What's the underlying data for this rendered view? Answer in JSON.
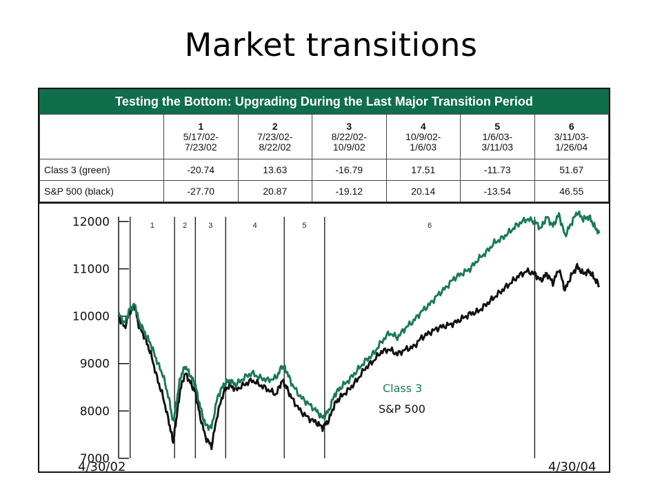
{
  "slide": {
    "title": "Market transitions"
  },
  "table": {
    "banner": "Testing the Bottom: Upgrading During the Last Major Transition Period",
    "periods": [
      {
        "num": "1",
        "start": "5/17/02-",
        "end": "7/23/02"
      },
      {
        "num": "2",
        "start": "7/23/02-",
        "end": "8/22/02"
      },
      {
        "num": "3",
        "start": "8/22/02-",
        "end": "10/9/02"
      },
      {
        "num": "4",
        "start": "10/9/02-",
        "end": "1/6/03"
      },
      {
        "num": "5",
        "start": "1/6/03-",
        "end": "3/11/03"
      },
      {
        "num": "6",
        "start": "3/11/03-",
        "end": "1/26/04"
      }
    ],
    "rows": [
      {
        "label": "Class 3 (green)",
        "values": [
          "-20.74",
          "13.63",
          "-16.79",
          "17.51",
          "-11.73",
          "51.67"
        ]
      },
      {
        "label": "S&P 500 (black)",
        "values": [
          "-27.70",
          "20.87",
          "-19.12",
          "20.14",
          "-13.54",
          "46.55"
        ]
      }
    ]
  },
  "colors": {
    "green": "#1a7a5a",
    "black": "#111111",
    "banner": "#0f6e4c"
  },
  "chart_data": {
    "type": "line",
    "yticks": [
      7000,
      8000,
      9000,
      10000,
      11000,
      12000
    ],
    "ytick_labels": [
      "7000",
      "8000",
      "9000",
      "10000",
      "11000",
      "12000"
    ],
    "ylim": [
      7000,
      12100
    ],
    "x_start_label": "4/30/02",
    "x_end_label": "4/30/04",
    "period_labels": [
      "1",
      "2",
      "3",
      "4",
      "5",
      "6"
    ],
    "boundary_months": [
      0.57,
      2.77,
      3.8,
      5.3,
      8.2,
      10.2,
      20.6
    ],
    "xlim_months": [
      0,
      24
    ],
    "annotations": [
      {
        "text": "Class 3",
        "color": "green"
      },
      {
        "text": "S&P 500",
        "color": "black"
      }
    ],
    "series": [
      {
        "color": "green",
        "x": [
          0,
          0.3,
          0.55,
          0.8,
          1.0,
          1.3,
          1.6,
          1.9,
          2.2,
          2.5,
          2.7,
          2.85,
          3.05,
          3.3,
          3.55,
          3.8,
          4.0,
          4.3,
          4.6,
          4.9,
          5.2,
          5.5,
          5.8,
          6.2,
          6.6,
          7.0,
          7.4,
          7.8,
          8.1,
          8.3,
          8.6,
          9.0,
          9.4,
          9.8,
          10.1,
          10.4,
          10.7,
          11.0,
          11.4,
          11.8,
          12.2,
          12.6,
          13.0,
          13.4,
          13.8,
          14.2,
          14.6,
          15.0,
          15.4,
          15.8,
          16.2,
          16.6,
          17.0,
          17.4,
          17.8,
          18.2,
          18.6,
          19.0,
          19.4,
          19.8,
          20.2,
          20.6,
          20.9,
          21.2,
          21.5,
          21.8,
          22.1,
          22.4,
          22.7,
          23.0,
          23.3,
          23.55,
          23.8
        ],
        "values": [
          10050,
          9850,
          10150,
          10250,
          9900,
          9650,
          9400,
          9050,
          8750,
          8250,
          7750,
          8150,
          8700,
          8950,
          8750,
          8550,
          8150,
          7700,
          7650,
          8300,
          8550,
          8650,
          8550,
          8700,
          8800,
          8700,
          8650,
          8700,
          8950,
          8850,
          8550,
          8300,
          8150,
          8000,
          7850,
          8000,
          8350,
          8500,
          8650,
          8850,
          9050,
          9200,
          9450,
          9650,
          9550,
          9750,
          9900,
          10100,
          10250,
          10450,
          10600,
          10800,
          10900,
          11000,
          11200,
          11350,
          11550,
          11650,
          11800,
          11950,
          12050,
          12000,
          11850,
          12100,
          11900,
          12150,
          11700,
          11950,
          12200,
          12050,
          12100,
          11900,
          11750
        ]
      },
      {
        "color": "black",
        "x": [
          0,
          0.3,
          0.55,
          0.8,
          1.0,
          1.3,
          1.6,
          1.9,
          2.2,
          2.5,
          2.7,
          2.85,
          3.05,
          3.3,
          3.55,
          3.8,
          4.0,
          4.3,
          4.6,
          4.9,
          5.2,
          5.5,
          5.8,
          6.2,
          6.6,
          7.0,
          7.4,
          7.8,
          8.1,
          8.3,
          8.6,
          9.0,
          9.4,
          9.8,
          10.1,
          10.4,
          10.7,
          11.0,
          11.4,
          11.8,
          12.2,
          12.6,
          13.0,
          13.4,
          13.8,
          14.2,
          14.6,
          15.0,
          15.4,
          15.8,
          16.2,
          16.6,
          17.0,
          17.4,
          17.8,
          18.2,
          18.6,
          19.0,
          19.4,
          19.8,
          20.2,
          20.6,
          20.9,
          21.2,
          21.5,
          21.8,
          22.1,
          22.4,
          22.7,
          23.0,
          23.3,
          23.55,
          23.8
        ],
        "values": [
          10000,
          9750,
          10100,
          10200,
          9800,
          9550,
          9200,
          8700,
          8300,
          7750,
          7350,
          7800,
          8450,
          8800,
          8600,
          8400,
          7950,
          7450,
          7250,
          7950,
          8400,
          8550,
          8450,
          8550,
          8650,
          8550,
          8450,
          8350,
          8650,
          8500,
          8250,
          8000,
          7850,
          7750,
          7650,
          7800,
          8150,
          8300,
          8450,
          8650,
          8900,
          9050,
          9250,
          9300,
          9200,
          9300,
          9350,
          9550,
          9650,
          9750,
          9800,
          9850,
          9950,
          10050,
          10100,
          10250,
          10400,
          10550,
          10700,
          10850,
          10950,
          10900,
          10750,
          10900,
          10700,
          11000,
          10550,
          10850,
          11050,
          10900,
          10950,
          10800,
          10650
        ]
      }
    ]
  }
}
